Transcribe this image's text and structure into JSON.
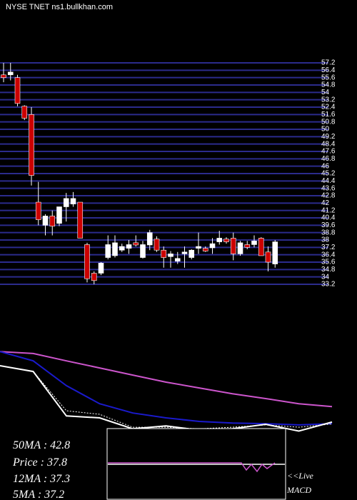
{
  "title": "NYSE TNET ns1.bullkhan.com",
  "chart_data": [
    {
      "type": "candlestick",
      "ylim": [
        33.2,
        57.2
      ],
      "yticks": [
        33.2,
        34,
        34.8,
        35.6,
        36.4,
        37.2,
        38,
        38.8,
        39.6,
        40.4,
        41.2,
        42,
        42.8,
        43.6,
        44.4,
        45.2,
        46,
        46.8,
        47.6,
        48.4,
        49.2,
        50,
        50.8,
        51.6,
        52.4,
        53.2,
        54,
        54.8,
        55.6,
        56.4,
        57.2
      ],
      "grid": true,
      "grid_color": "#2b2b8c",
      "up_color": "#ffffff",
      "down_color": "#cc0000",
      "open": [
        55.9,
        55.9,
        55.6,
        52.5,
        51.6,
        42.1,
        39.6,
        40.6,
        39.8,
        41.6,
        41.9,
        42.1,
        37.5,
        34.4,
        34.4,
        36.1,
        36.3,
        36.9,
        37.1,
        37.7,
        36.1,
        37.46,
        38.1,
        36.9,
        36.2,
        35.7,
        36.5,
        36.1,
        37.1,
        37.1,
        37.15,
        37.8,
        38.1,
        38.2,
        36.5,
        37.5,
        37.5,
        38.2,
        36.7,
        35.4
      ],
      "high": [
        57.2,
        57.2,
        55.9,
        52.6,
        52.4,
        44.3,
        40.8,
        41.2,
        41.6,
        43.1,
        43.2,
        42.1,
        37.7,
        34.6,
        35.6,
        38.5,
        38.5,
        37.6,
        38.0,
        38.5,
        37.9,
        39.1,
        38.4,
        37.3,
        36.8,
        36.7,
        37.3,
        37.0,
        38.8,
        37.3,
        38.2,
        39.0,
        38.3,
        38.8,
        37.9,
        37.9,
        38.5,
        38.3,
        37.3,
        38.0
      ],
      "low": [
        55.1,
        55.3,
        52.5,
        51.0,
        43.9,
        39.6,
        38.5,
        38.5,
        39.5,
        40.0,
        41.6,
        38.2,
        33.4,
        33.2,
        34.2,
        35.9,
        36.1,
        36.7,
        36.5,
        37.3,
        36.0,
        36.9,
        36.7,
        35.0,
        35.0,
        35.4,
        35.0,
        35.9,
        36.5,
        36.7,
        36.5,
        37.5,
        37.6,
        35.8,
        36.3,
        37.0,
        37.2,
        36.3,
        34.6,
        35.0
      ],
      "close": [
        55.6,
        56.2,
        52.8,
        51.2,
        45.0,
        40.2,
        40.6,
        39.5,
        41.6,
        42.5,
        42.5,
        38.2,
        33.8,
        33.6,
        35.5,
        37.5,
        37.7,
        37.3,
        37.5,
        37.46,
        37.5,
        38.8,
        36.9,
        36.1,
        36.5,
        36.0,
        36.7,
        36.9,
        37.3,
        36.8,
        37.6,
        38.2,
        37.8,
        36.5,
        37.7,
        37.2,
        37.9,
        36.3,
        35.6,
        37.8
      ]
    },
    {
      "type": "line",
      "ylim": [
        30,
        62.4
      ],
      "series": [
        {
          "color": "#cc55cc",
          "dash": false,
          "values": [
            59.7,
            59.1,
            56.8,
            54.6,
            52.4,
            50.2,
            48.4,
            46.6,
            45.1,
            43.5,
            42.6
          ]
        },
        {
          "color": "#1a1acc",
          "dash": false,
          "values": [
            59.7,
            56.8,
            49.1,
            43.5,
            40.6,
            39.1,
            38.0,
            37.5,
            37.3,
            36.9,
            37.3
          ]
        },
        {
          "color": "#ffffff",
          "dash": true,
          "values": [
            55.3,
            53.5,
            41.3,
            40.2,
            36.2,
            36.2,
            35.7,
            36.2,
            36.9,
            36.2,
            37.2
          ]
        },
        {
          "color": "#ffffff",
          "dash": false,
          "values": [
            55.3,
            53.5,
            39.7,
            39.1,
            35.7,
            36.6,
            35.3,
            35.7,
            37.1,
            35.0,
            37.8
          ]
        }
      ]
    }
  ],
  "info": [
    "50MA : 42.8",
    "Price  : 37.8",
    "12MA : 37.3",
    "5MA : 37.2"
  ],
  "macd_label": [
    "<<Live",
    "MACD"
  ]
}
